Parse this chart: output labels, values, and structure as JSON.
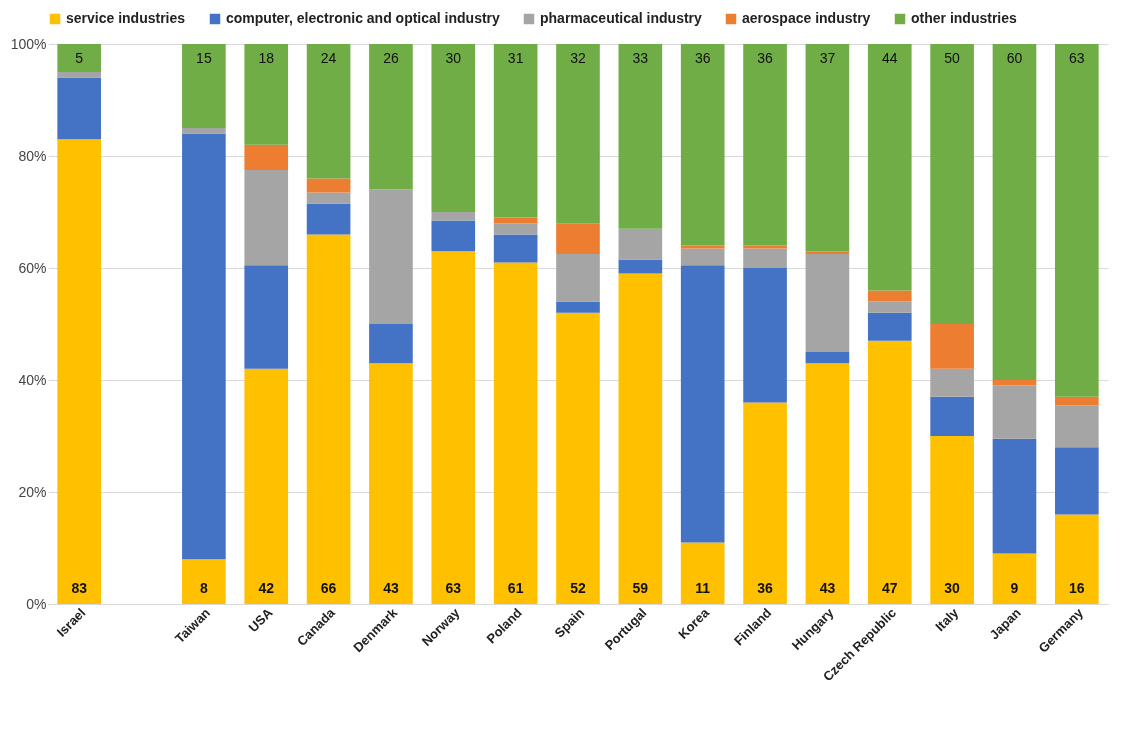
{
  "chart_data": {
    "type": "bar",
    "stacked": true,
    "categories": [
      "Israel",
      null,
      "Taiwan",
      "USA",
      "Canada",
      "Denmark",
      "Norway",
      "Poland",
      "Spain",
      "Portugal",
      "Korea",
      "Finland",
      "Hungary",
      "Czech Republic",
      "Italy",
      "Japan",
      "Germany"
    ],
    "series": [
      {
        "name": "service industries",
        "color": "#ffc000",
        "values": [
          83,
          null,
          8,
          42,
          66,
          43,
          63,
          61,
          52,
          59,
          11,
          36,
          43,
          47,
          30,
          9,
          16
        ],
        "value_labels": [
          "83",
          null,
          "8",
          "42",
          "66",
          "43",
          "63",
          "61",
          "52",
          "59",
          "11",
          "36",
          "43",
          "47",
          "30",
          "9",
          "16"
        ]
      },
      {
        "name": "computer, electronic and optical industry",
        "color": "#4472c4",
        "values": [
          11,
          null,
          76,
          18.5,
          5.5,
          7,
          5.5,
          5,
          2,
          2.5,
          49.5,
          24,
          2,
          5,
          7,
          20.5,
          12
        ]
      },
      {
        "name": "pharmaceutical industry",
        "color": "#a5a5a5",
        "values": [
          1,
          null,
          1,
          17,
          2,
          24,
          1.5,
          2,
          8.5,
          5.5,
          3,
          3.5,
          17.5,
          2,
          5,
          9.5,
          7.5
        ]
      },
      {
        "name": "aerospace industry",
        "color": "#ed7d31",
        "values": [
          0,
          null,
          0,
          4.5,
          2.5,
          0,
          0,
          1,
          5.5,
          0,
          0.5,
          0.5,
          0.5,
          2,
          8,
          1,
          1.5
        ]
      },
      {
        "name": "other industries",
        "color": "#70ad47",
        "values": [
          5,
          null,
          15,
          18,
          24,
          26,
          30,
          31,
          32,
          33,
          36,
          36,
          37,
          44,
          50,
          60,
          63
        ],
        "value_labels": [
          "5",
          null,
          "15",
          "18",
          "24",
          "26",
          "30",
          "31",
          "32",
          "33",
          "36",
          "36",
          "37",
          "44",
          "50",
          "60",
          "63"
        ]
      }
    ],
    "ylim": [
      0,
      100
    ],
    "yticks": [
      {
        "value": 0,
        "label": "0%"
      },
      {
        "value": 20,
        "label": "20%"
      },
      {
        "value": 40,
        "label": "40%"
      },
      {
        "value": 60,
        "label": "60%"
      },
      {
        "value": 80,
        "label": "80%"
      },
      {
        "value": 100,
        "label": "100%"
      }
    ],
    "grid": "y",
    "legend": "top"
  }
}
